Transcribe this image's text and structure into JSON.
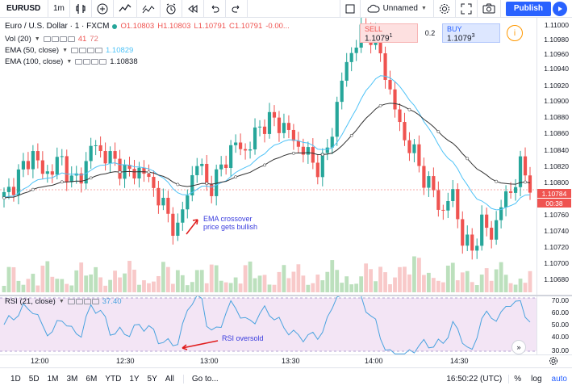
{
  "toolbar": {
    "symbol": "EURUSD",
    "interval": "1m",
    "layout_name": "Unnamed",
    "publish_label": "Publish"
  },
  "legend": {
    "title": "Euro / U.S. Dollar · 1 · FXCM",
    "ohlc": {
      "open": "O1.10803",
      "high": "H1.10803",
      "low": "L1.10791",
      "close": "C1.10791",
      "change": "-0.00..."
    },
    "vol": {
      "label": "Vol (20)",
      "v1": "41",
      "v2": "72"
    },
    "ema50": {
      "label": "EMA (50, close)",
      "value": "1.10829"
    },
    "ema100": {
      "label": "EMA (100, close)",
      "value": "1.10838"
    }
  },
  "trade": {
    "sell_label": "SELL",
    "sell_price": "1.1079",
    "sell_sup": "1",
    "spread": "0.2",
    "buy_label": "BUY",
    "buy_price": "1.1079",
    "buy_sup": "3",
    "info_icon": "i"
  },
  "annotations": {
    "ema_line1": "EMA crossover",
    "ema_line2": "price gets bullish",
    "rsi": "RSI oversold"
  },
  "price_axis": {
    "labels": [
      "1.11000",
      "1.10980",
      "1.10960",
      "1.10940",
      "1.10920",
      "1.10900",
      "1.10880",
      "1.10860",
      "1.10840",
      "1.10820",
      "1.10800",
      "1.10760",
      "1.10740",
      "1.10720",
      "1.10700",
      "1.10680"
    ],
    "last_price": "1.10784",
    "countdown": "00:38"
  },
  "rsi": {
    "label": "RSI (21, close)",
    "value": "37.40",
    "axis_labels": [
      "70.00",
      "60.00",
      "50.00",
      "40.00",
      "30.00"
    ]
  },
  "time_axis": {
    "labels": [
      "12:00",
      "12:30",
      "13:00",
      "13:30",
      "14:00",
      "14:30"
    ]
  },
  "bottom": {
    "ranges": [
      "1D",
      "5D",
      "1M",
      "3M",
      "6M",
      "YTD",
      "1Y",
      "5Y",
      "All"
    ],
    "goto": "Go to...",
    "clock": "16:50:22 (UTC)",
    "percent": "%",
    "log": "log",
    "auto": "auto"
  },
  "colors": {
    "up": "#26a69a",
    "down": "#ef5350",
    "ema50": "#4fc3f7",
    "ema100": "#555555",
    "rsi": "#4aa3df",
    "rsi_bg": "#f3e5f5",
    "accent": "#2962ff"
  },
  "chart_data": {
    "type": "candlestick",
    "price_min": 1.1067,
    "price_max": 1.11,
    "candles_close_path": [
      1.1077,
      1.1079,
      1.1081,
      1.1083,
      1.108,
      1.1081,
      1.1082,
      1.1079,
      1.108,
      1.1084,
      1.1083,
      1.1082,
      1.1081,
      1.108,
      1.1081,
      1.1079,
      1.1077,
      1.1074,
      1.1073,
      1.1079,
      1.1082,
      1.1078,
      1.108,
      1.1083,
      1.1084,
      1.1083,
      1.1086,
      1.1087,
      1.1087,
      1.1086,
      1.1084,
      1.1083,
      1.1081,
      1.1082,
      1.1088,
      1.1094,
      1.1097,
      1.1099,
      1.1098,
      1.1094,
      1.1089,
      1.1085,
      1.1083,
      1.108,
      1.1078,
      1.1075,
      1.1078,
      1.1072,
      1.107,
      1.1074,
      1.1072,
      1.1076,
      1.1078,
      1.1081,
      1.1079
    ]
  }
}
